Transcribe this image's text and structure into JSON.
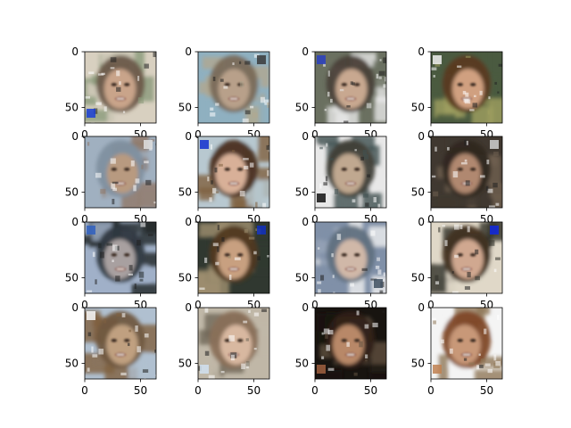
{
  "chart_data": {
    "type": "image-grid",
    "rows": 4,
    "cols": 4,
    "image_size": 64,
    "xlim": [
      0,
      64
    ],
    "ylim": [
      64,
      0
    ],
    "x_ticks": [
      0,
      50
    ],
    "y_ticks": [
      0,
      50
    ],
    "x_tick_labels": [
      "0",
      "50"
    ],
    "y_tick_labels": [
      "0",
      "50"
    ],
    "grid": false,
    "tiles": [
      {
        "skin": "#c9a48a",
        "hair": "#6b5a4a",
        "bg1": "#d8d0c0",
        "bg2": "#8a9a7a",
        "accent": "#1b3fd6"
      },
      {
        "skin": "#b8a08a",
        "hair": "#7a6a58",
        "bg1": "#8fb0c0",
        "bg2": "#b0a890",
        "accent": "#3a3a3a"
      },
      {
        "skin": "#c8a890",
        "hair": "#4a4038",
        "bg1": "#6a7060",
        "bg2": "#e8e8e8",
        "accent": "#2a40c0"
      },
      {
        "skin": "#d0a080",
        "hair": "#5a3a20",
        "bg1": "#4a5a40",
        "bg2": "#a0a060",
        "accent": "#f0f0f0"
      },
      {
        "skin": "#b89a80",
        "hair": "#8090a0",
        "bg1": "#a0b0c0",
        "bg2": "#907868",
        "accent": "#e0e0e0"
      },
      {
        "skin": "#d8b098",
        "hair": "#4a3020",
        "bg1": "#b8c8d0",
        "bg2": "#806040",
        "accent": "#1030d0"
      },
      {
        "skin": "#c0a890",
        "hair": "#404038",
        "bg1": "#e8e8e8",
        "bg2": "#405050",
        "accent": "#101010"
      },
      {
        "skin": "#b08870",
        "hair": "#302820",
        "bg1": "#403830",
        "bg2": "#706050",
        "accent": "#d0d0d0"
      },
      {
        "skin": "#a8a0a0",
        "hair": "#303840",
        "bg1": "#a0b0c8",
        "bg2": "#202828",
        "accent": "#3060c0"
      },
      {
        "skin": "#c8a080",
        "hair": "#503820",
        "bg1": "#303830",
        "bg2": "#a09070",
        "accent": "#1030c0"
      },
      {
        "skin": "#d0b8a8",
        "hair": "#607080",
        "bg1": "#8090a8",
        "bg2": "#f0f0f0",
        "accent": "#405060"
      },
      {
        "skin": "#d0a890",
        "hair": "#403020",
        "bg1": "#e0d8c8",
        "bg2": "#303028",
        "accent": "#1028e0"
      },
      {
        "skin": "#c0a080",
        "hair": "#705840",
        "bg1": "#b0c0d0",
        "bg2": "#806040",
        "accent": "#f8f8f8"
      },
      {
        "skin": "#d8b8a0",
        "hair": "#8a7058",
        "bg1": "#c0b8a8",
        "bg2": "#706858",
        "accent": "#d0e0f0"
      },
      {
        "skin": "#b88868",
        "hair": "#302018",
        "bg1": "#181410",
        "bg2": "#605040",
        "accent": "#a06040"
      },
      {
        "skin": "#c89878",
        "hair": "#804828",
        "bg1": "#f4f4f4",
        "bg2": "#907858",
        "accent": "#c08050"
      }
    ]
  }
}
